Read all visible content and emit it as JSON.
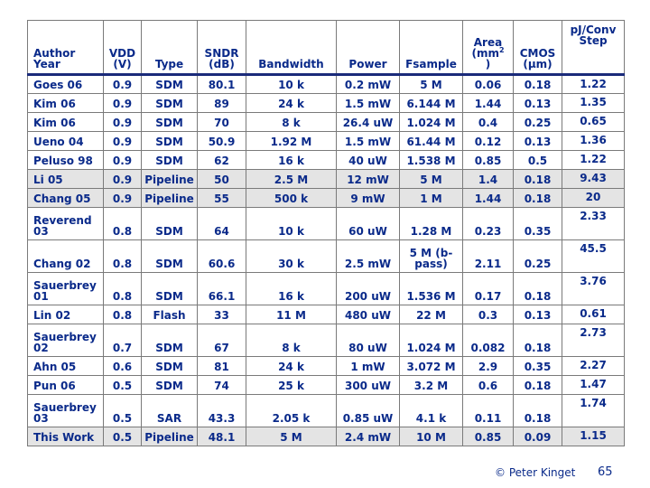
{
  "table": {
    "headers": [
      {
        "line1": "Author",
        "line2": "Year"
      },
      {
        "line1": "VDD",
        "line2": "(V)"
      },
      {
        "line1": "",
        "line2": "Type"
      },
      {
        "line1": "SNDR",
        "line2": "(dB)"
      },
      {
        "line1": "",
        "line2": "Bandwidth"
      },
      {
        "line1": "",
        "line2": "Power"
      },
      {
        "line1": "",
        "line2": "Fsample"
      },
      {
        "line1": "Area",
        "line2": "(mm",
        "sup": "2",
        "line3": ")"
      },
      {
        "line1": "CMOS",
        "line2": "(μm)"
      },
      {
        "line1": "pJ/Conv",
        "line2": "Step"
      }
    ],
    "rows": [
      {
        "cells": [
          "Goes 06",
          "0.9",
          "SDM",
          "80.1",
          "10 k",
          "0.2 mW",
          "5 M",
          "0.06",
          "0.18",
          "1.22"
        ],
        "shaded": false,
        "tall": false
      },
      {
        "cells": [
          "Kim 06",
          "0.9",
          "SDM",
          "89",
          "24 k",
          "1.5 mW",
          "6.144 M",
          "1.44",
          "0.13",
          "1.35"
        ],
        "shaded": false,
        "tall": false
      },
      {
        "cells": [
          "Kim 06",
          "0.9",
          "SDM",
          "70",
          "8 k",
          "26.4 uW",
          "1.024 M",
          "0.4",
          "0.25",
          "0.65"
        ],
        "shaded": false,
        "tall": false
      },
      {
        "cells": [
          "Ueno 04",
          "0.9",
          "SDM",
          "50.9",
          "1.92 M",
          "1.5 mW",
          "61.44 M",
          "0.12",
          "0.13",
          "1.36"
        ],
        "shaded": false,
        "tall": false
      },
      {
        "cells": [
          "Peluso 98",
          "0.9",
          "SDM",
          "62",
          "16 k",
          "40 uW",
          "1.538 M",
          "0.85",
          "0.5",
          "1.22"
        ],
        "shaded": false,
        "tall": false
      },
      {
        "cells": [
          "Li 05",
          "0.9",
          "Pipeline",
          "50",
          "2.5 M",
          "12 mW",
          "5 M",
          "1.4",
          "0.18",
          "9.43"
        ],
        "shaded": true,
        "tall": false
      },
      {
        "cells": [
          "Chang 05",
          "0.9",
          "Pipeline",
          "55",
          "500 k",
          "9 mW",
          "1 M",
          "1.44",
          "0.18",
          "20"
        ],
        "shaded": true,
        "tall": false
      },
      {
        "cells": [
          "Reverend\n03",
          "0.8",
          "SDM",
          "64",
          "10 k",
          "60 uW",
          "1.28 M",
          "0.23",
          "0.35",
          "2.33"
        ],
        "shaded": false,
        "tall": true
      },
      {
        "cells": [
          "Chang 02",
          "0.8",
          "SDM",
          "60.6",
          "30 k",
          "2.5 mW",
          "5 M (b-\npass)",
          "2.11",
          "0.25",
          "45.5"
        ],
        "shaded": false,
        "tall": true
      },
      {
        "cells": [
          "Sauerbrey\n01",
          "0.8",
          "SDM",
          "66.1",
          "16 k",
          "200 uW",
          "1.536 M",
          "0.17",
          "0.18",
          "3.76"
        ],
        "shaded": false,
        "tall": true
      },
      {
        "cells": [
          "Lin 02",
          "0.8",
          "Flash",
          "33",
          "11 M",
          "480 uW",
          "22 M",
          "0.3",
          "0.13",
          "0.61"
        ],
        "shaded": false,
        "tall": false
      },
      {
        "cells": [
          "Sauerbrey\n02",
          "0.7",
          "SDM",
          "67",
          "8 k",
          "80 uW",
          "1.024 M",
          "0.082",
          "0.18",
          "2.73"
        ],
        "shaded": false,
        "tall": true
      },
      {
        "cells": [
          "Ahn 05",
          "0.6",
          "SDM",
          "81",
          "24 k",
          "1 mW",
          "3.072 M",
          "2.9",
          "0.35",
          "2.27"
        ],
        "shaded": false,
        "tall": false
      },
      {
        "cells": [
          "Pun 06",
          "0.5",
          "SDM",
          "74",
          "25 k",
          "300 uW",
          "3.2 M",
          "0.6",
          "0.18",
          "1.47"
        ],
        "shaded": false,
        "tall": false
      },
      {
        "cells": [
          "Sauerbrey\n03",
          "0.5",
          "SAR",
          "43.3",
          "2.05 k",
          "0.85 uW",
          "4.1 k",
          "0.11",
          "0.18",
          "1.74"
        ],
        "shaded": false,
        "tall": true
      },
      {
        "cells": [
          "This Work",
          "0.5",
          "Pipeline",
          "48.1",
          "5 M",
          "2.4 mW",
          "10 M",
          "0.85",
          "0.09",
          "1.15"
        ],
        "shaded": true,
        "tall": false
      }
    ]
  },
  "footer": {
    "credit": "© Peter Kinget",
    "page_number": "65"
  }
}
